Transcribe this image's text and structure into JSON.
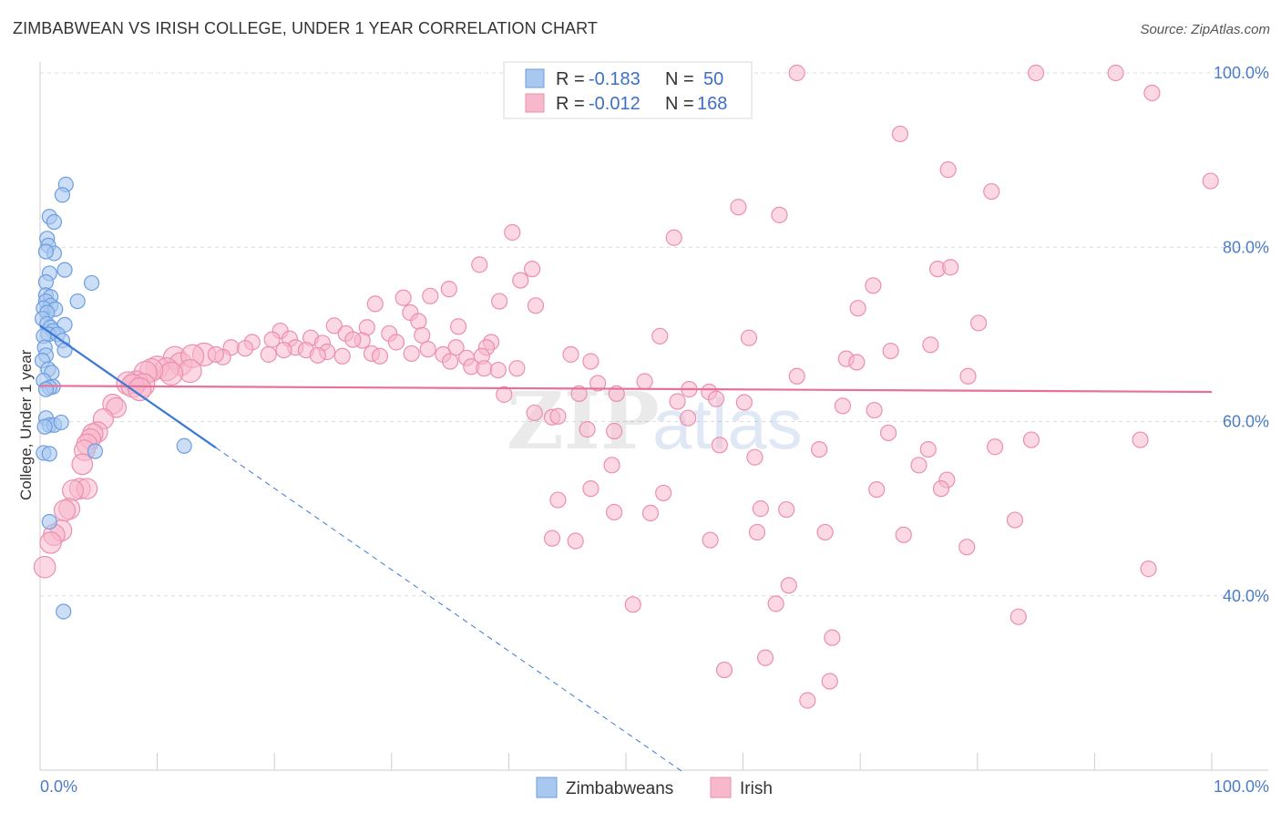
{
  "title": "ZIMBABWEAN VS IRISH COLLEGE, UNDER 1 YEAR CORRELATION CHART",
  "source": "Source: ZipAtlas.com",
  "chart_data": {
    "type": "scatter",
    "title": "ZIMBABWEAN VS IRISH COLLEGE, UNDER 1 YEAR CORRELATION CHART",
    "xlabel": "",
    "ylabel": "College, Under 1 year",
    "xlim": [
      0,
      100
    ],
    "ylim": [
      20,
      102
    ],
    "x_tick_labels": [
      "0.0%",
      "100.0%"
    ],
    "y_ticks": [
      40,
      60,
      80,
      100
    ],
    "y_tick_labels": [
      "40.0%",
      "60.0%",
      "80.0%",
      "100.0%"
    ],
    "watermark": "ZIPatlas",
    "legend": {
      "r_label": "R =",
      "n_label": "N =",
      "entries": [
        {
          "name": "Zimbabweans",
          "r": "-0.183",
          "n": "50",
          "color": "#a9c8f0",
          "stroke": "#6d9de0"
        },
        {
          "name": "Irish",
          "r": "-0.012",
          "n": "168",
          "color": "#f7b8cc",
          "stroke": "#ec8fae"
        }
      ]
    },
    "series": [
      {
        "name": "Zimbabweans",
        "color": "#a9c8f0",
        "trend": {
          "x0": 0,
          "y0": 71.0,
          "x1": 15,
          "y1": 57.0,
          "dash_to_x": 55
        },
        "points": [
          [
            2.2,
            87.2
          ],
          [
            1.9,
            86.0
          ],
          [
            0.8,
            83.5
          ],
          [
            1.2,
            82.9
          ],
          [
            0.6,
            81.0
          ],
          [
            0.7,
            80.2
          ],
          [
            1.2,
            79.3
          ],
          [
            0.5,
            79.5
          ],
          [
            2.1,
            77.4
          ],
          [
            0.8,
            77.0
          ],
          [
            0.5,
            76.0
          ],
          [
            4.4,
            75.9
          ],
          [
            0.5,
            74.5
          ],
          [
            0.9,
            74.3
          ],
          [
            0.5,
            73.8
          ],
          [
            3.2,
            73.8
          ],
          [
            0.9,
            73.3
          ],
          [
            0.3,
            73.0
          ],
          [
            1.3,
            72.9
          ],
          [
            0.6,
            72.5
          ],
          [
            0.2,
            71.8
          ],
          [
            0.6,
            71.2
          ],
          [
            2.1,
            71.1
          ],
          [
            0.9,
            70.8
          ],
          [
            1.1,
            70.4
          ],
          [
            0.7,
            70.0
          ],
          [
            1.5,
            70.0
          ],
          [
            0.3,
            69.8
          ],
          [
            1.9,
            69.3
          ],
          [
            0.4,
            68.5
          ],
          [
            2.1,
            68.2
          ],
          [
            0.5,
            67.6
          ],
          [
            0.2,
            67.0
          ],
          [
            0.7,
            66.0
          ],
          [
            1.0,
            65.6
          ],
          [
            0.3,
            64.7
          ],
          [
            1.1,
            64.0
          ],
          [
            0.8,
            63.9
          ],
          [
            0.5,
            63.7
          ],
          [
            0.5,
            60.4
          ],
          [
            0.8,
            59.6
          ],
          [
            1.2,
            59.6
          ],
          [
            1.8,
            59.9
          ],
          [
            0.4,
            59.4
          ],
          [
            0.3,
            56.4
          ],
          [
            0.8,
            56.3
          ],
          [
            4.7,
            56.6
          ],
          [
            12.3,
            57.2
          ],
          [
            0.8,
            48.5
          ],
          [
            2.0,
            38.2
          ]
        ]
      },
      {
        "name": "Irish",
        "color": "#f7b8cc",
        "trend": {
          "x0": 0,
          "y0": 64.1,
          "x1": 100,
          "y1": 63.4
        },
        "points": [
          [
            64.6,
            100
          ],
          [
            85.0,
            100
          ],
          [
            91.8,
            100
          ],
          [
            94.9,
            97.7
          ],
          [
            73.4,
            93.0
          ],
          [
            77.5,
            88.9
          ],
          [
            81.2,
            86.4
          ],
          [
            99.9,
            87.6
          ],
          [
            59.6,
            84.6
          ],
          [
            63.1,
            83.7
          ],
          [
            40.3,
            81.7
          ],
          [
            54.1,
            81.1
          ],
          [
            37.5,
            78.0
          ],
          [
            42.0,
            77.5
          ],
          [
            76.6,
            77.5
          ],
          [
            77.7,
            77.7
          ],
          [
            41.0,
            76.2
          ],
          [
            71.1,
            75.6
          ],
          [
            34.9,
            75.2
          ],
          [
            33.3,
            74.4
          ],
          [
            31.0,
            74.2
          ],
          [
            39.2,
            73.8
          ],
          [
            42.3,
            73.3
          ],
          [
            28.6,
            73.5
          ],
          [
            69.8,
            73.0
          ],
          [
            31.6,
            72.5
          ],
          [
            32.3,
            71.5
          ],
          [
            80.1,
            71.3
          ],
          [
            25.1,
            71.0
          ],
          [
            27.9,
            70.8
          ],
          [
            20.5,
            70.4
          ],
          [
            35.7,
            70.9
          ],
          [
            26.1,
            70.1
          ],
          [
            29.8,
            70.1
          ],
          [
            32.6,
            69.9
          ],
          [
            23.1,
            69.6
          ],
          [
            19.8,
            69.4
          ],
          [
            21.3,
            69.5
          ],
          [
            27.5,
            69.3
          ],
          [
            38.5,
            69.1
          ],
          [
            52.9,
            69.8
          ],
          [
            60.5,
            69.6
          ],
          [
            26.7,
            69.4
          ],
          [
            30.4,
            69.1
          ],
          [
            33.1,
            68.3
          ],
          [
            35.5,
            68.5
          ],
          [
            38.1,
            68.5
          ],
          [
            24.1,
            69.0
          ],
          [
            76.0,
            68.8
          ],
          [
            21.8,
            68.5
          ],
          [
            18.1,
            69.1
          ],
          [
            16.3,
            68.5
          ],
          [
            17.5,
            68.4
          ],
          [
            22.7,
            68.2
          ],
          [
            24.5,
            68.0
          ],
          [
            28.3,
            67.8
          ],
          [
            31.7,
            67.8
          ],
          [
            34.4,
            67.7
          ],
          [
            36.4,
            67.3
          ],
          [
            37.7,
            67.5
          ],
          [
            11.5,
            67.3
          ],
          [
            14.0,
            67.7
          ],
          [
            15.6,
            67.4
          ],
          [
            12.0,
            66.6
          ],
          [
            13.0,
            67.5
          ],
          [
            15.0,
            67.7
          ],
          [
            19.5,
            67.7
          ],
          [
            20.8,
            68.2
          ],
          [
            23.7,
            67.6
          ],
          [
            25.8,
            67.5
          ],
          [
            29.0,
            67.5
          ],
          [
            35.0,
            66.9
          ],
          [
            45.3,
            67.7
          ],
          [
            47.0,
            66.9
          ],
          [
            68.8,
            67.2
          ],
          [
            72.6,
            68.1
          ],
          [
            69.7,
            66.8
          ],
          [
            36.8,
            66.3
          ],
          [
            37.9,
            66.1
          ],
          [
            39.1,
            65.9
          ],
          [
            40.7,
            66.1
          ],
          [
            10.0,
            66.2
          ],
          [
            10.8,
            66.0
          ],
          [
            12.8,
            65.8
          ],
          [
            11.2,
            65.5
          ],
          [
            9.5,
            65.9
          ],
          [
            9.0,
            65.6
          ],
          [
            64.6,
            65.2
          ],
          [
            79.2,
            65.2
          ],
          [
            8.2,
            64.5
          ],
          [
            7.5,
            64.4
          ],
          [
            8.8,
            64.2
          ],
          [
            7.9,
            64.1
          ],
          [
            8.5,
            63.7
          ],
          [
            51.6,
            64.6
          ],
          [
            47.6,
            64.4
          ],
          [
            55.4,
            63.7
          ],
          [
            57.1,
            63.4
          ],
          [
            39.6,
            63.1
          ],
          [
            46.0,
            63.2
          ],
          [
            49.2,
            63.2
          ],
          [
            57.7,
            62.6
          ],
          [
            54.4,
            62.3
          ],
          [
            60.1,
            62.2
          ],
          [
            6.2,
            62.0
          ],
          [
            6.5,
            61.6
          ],
          [
            42.2,
            61.0
          ],
          [
            55.3,
            60.4
          ],
          [
            68.5,
            61.8
          ],
          [
            71.2,
            61.3
          ],
          [
            5.4,
            60.3
          ],
          [
            43.7,
            60.5
          ],
          [
            44.2,
            60.6
          ],
          [
            46.7,
            59.1
          ],
          [
            49.0,
            58.9
          ],
          [
            72.4,
            58.7
          ],
          [
            4.9,
            58.8
          ],
          [
            4.5,
            58.6
          ],
          [
            4.3,
            58.0
          ],
          [
            58.0,
            57.3
          ],
          [
            66.5,
            56.8
          ],
          [
            4.0,
            57.4
          ],
          [
            3.8,
            56.7
          ],
          [
            75.8,
            56.8
          ],
          [
            81.5,
            57.1
          ],
          [
            84.6,
            57.9
          ],
          [
            93.9,
            57.9
          ],
          [
            61.0,
            55.9
          ],
          [
            3.6,
            55.1
          ],
          [
            48.8,
            55.0
          ],
          [
            75.0,
            55.0
          ],
          [
            77.4,
            53.3
          ],
          [
            3.4,
            52.3
          ],
          [
            4.0,
            52.3
          ],
          [
            2.8,
            52.1
          ],
          [
            47.0,
            52.3
          ],
          [
            53.2,
            51.8
          ],
          [
            71.4,
            52.2
          ],
          [
            76.9,
            52.3
          ],
          [
            44.2,
            51.0
          ],
          [
            2.5,
            50.0
          ],
          [
            2.1,
            49.8
          ],
          [
            49.0,
            49.6
          ],
          [
            52.1,
            49.5
          ],
          [
            61.5,
            50.0
          ],
          [
            63.7,
            49.9
          ],
          [
            83.2,
            48.7
          ],
          [
            1.8,
            47.5
          ],
          [
            1.2,
            47.0
          ],
          [
            43.7,
            46.6
          ],
          [
            45.7,
            46.3
          ],
          [
            57.2,
            46.4
          ],
          [
            61.2,
            47.3
          ],
          [
            67.0,
            47.3
          ],
          [
            73.7,
            47.0
          ],
          [
            79.1,
            45.6
          ],
          [
            0.9,
            46.1
          ],
          [
            0.4,
            43.3
          ],
          [
            94.6,
            43.1
          ],
          [
            63.9,
            41.2
          ],
          [
            50.6,
            39.0
          ],
          [
            62.8,
            39.1
          ],
          [
            83.5,
            37.6
          ],
          [
            67.6,
            35.2
          ],
          [
            61.9,
            32.9
          ],
          [
            58.4,
            31.5
          ],
          [
            67.4,
            30.2
          ],
          [
            65.5,
            28.0
          ]
        ]
      }
    ]
  }
}
